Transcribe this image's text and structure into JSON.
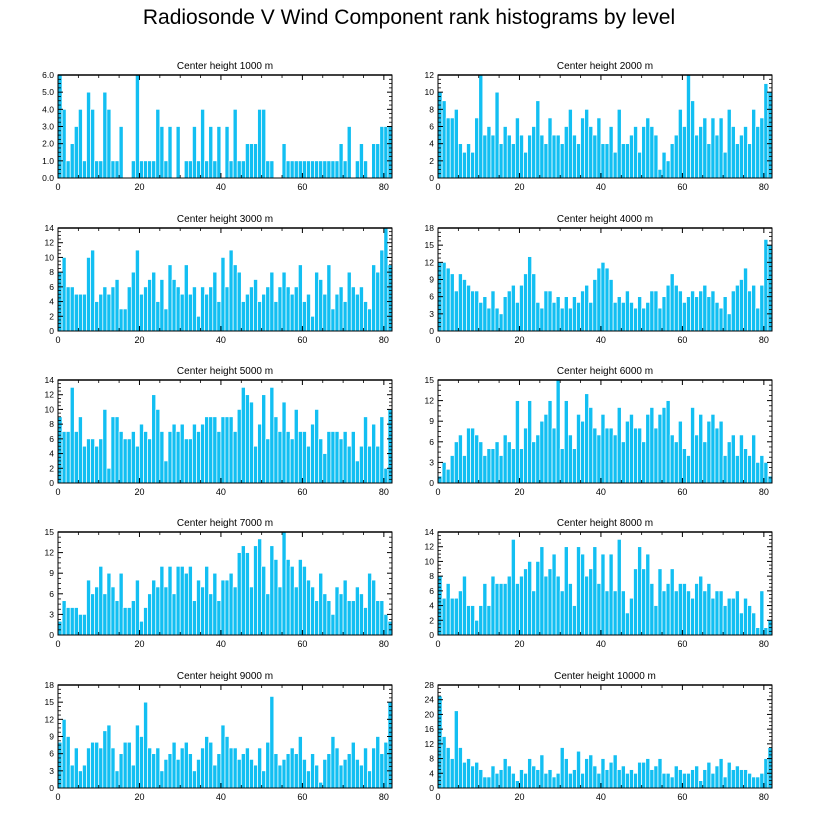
{
  "figure": {
    "title": "Radiosonde V Wind Component rank histograms by level",
    "bar_color": "#12bff2",
    "bar_edge_color": "#ffffff",
    "axis_color": "#000000"
  },
  "chart_data": [
    {
      "type": "bar",
      "title": "Center height 1000 m",
      "ylim": [
        0,
        6
      ],
      "yticks": [
        0,
        1,
        2,
        3,
        4,
        5,
        6
      ],
      "ytick_labels": [
        "0.0",
        "1.0",
        "2.0",
        "3.0",
        "4.0",
        "5.0",
        "6.0"
      ],
      "xlim": [
        0,
        82
      ],
      "xticks": [
        0,
        20,
        40,
        60,
        80
      ],
      "xtick_labels": [
        "0",
        "20",
        "40",
        "60",
        "80"
      ],
      "values": [
        6,
        4,
        1,
        2,
        3,
        4,
        1,
        5,
        4,
        1,
        1,
        5,
        4,
        1,
        1,
        3,
        0,
        0,
        1,
        6,
        1,
        1,
        1,
        1,
        4,
        3,
        1,
        3,
        0,
        3,
        0,
        1,
        1,
        3,
        1,
        4,
        1,
        3,
        1,
        3,
        0,
        3,
        1,
        4,
        1,
        1,
        2,
        2,
        2,
        4,
        4,
        1,
        1,
        0,
        0,
        2,
        1,
        1,
        1,
        1,
        1,
        1,
        1,
        1,
        1,
        1,
        1,
        1,
        1,
        2,
        1,
        3,
        0,
        1,
        2,
        1,
        0,
        2,
        2,
        3,
        3,
        3
      ]
    },
    {
      "type": "bar",
      "title": "Center height 2000 m",
      "ylim": [
        0,
        12
      ],
      "yticks": [
        0,
        2,
        4,
        6,
        8,
        10,
        12
      ],
      "ytick_labels": [
        "0",
        "2",
        "4",
        "6",
        "8",
        "10",
        "12"
      ],
      "xlim": [
        0,
        82
      ],
      "xticks": [
        0,
        20,
        40,
        60,
        80
      ],
      "xtick_labels": [
        "0",
        "20",
        "40",
        "60",
        "80"
      ],
      "values": [
        10,
        9,
        7,
        7,
        8,
        4,
        3,
        4,
        3,
        7,
        12,
        5,
        6,
        5,
        10,
        4,
        6,
        5,
        4,
        7,
        5,
        3,
        5,
        6,
        9,
        5,
        4,
        7,
        5,
        5,
        4,
        6,
        8,
        5,
        4,
        7,
        8,
        6,
        5,
        7,
        4,
        4,
        6,
        3,
        8,
        4,
        4,
        5,
        6,
        3,
        6,
        7,
        6,
        5,
        1,
        3,
        2,
        4,
        5,
        8,
        6,
        12,
        9,
        5,
        6,
        7,
        4,
        7,
        5,
        7,
        3,
        8,
        6,
        4,
        5,
        6,
        4,
        8,
        6,
        7,
        11,
        10
      ]
    },
    {
      "type": "bar",
      "title": "Center height 3000 m",
      "ylim": [
        0,
        14
      ],
      "yticks": [
        0,
        2,
        4,
        6,
        8,
        10,
        12,
        14
      ],
      "ytick_labels": [
        "0",
        "2",
        "4",
        "6",
        "8",
        "10",
        "12",
        "14"
      ],
      "xlim": [
        0,
        82
      ],
      "xticks": [
        0,
        20,
        40,
        60,
        80
      ],
      "xtick_labels": [
        "0",
        "20",
        "40",
        "60",
        "80"
      ],
      "values": [
        8,
        10,
        6,
        6,
        5,
        5,
        5,
        10,
        11,
        4,
        5,
        6,
        5,
        6,
        7,
        3,
        3,
        6,
        8,
        11,
        5,
        6,
        7,
        8,
        4,
        7,
        3,
        9,
        7,
        6,
        5,
        9,
        5,
        6,
        2,
        6,
        5,
        6,
        8,
        4,
        10,
        6,
        11,
        9,
        8,
        4,
        5,
        6,
        7,
        4,
        5,
        6,
        8,
        4,
        6,
        8,
        6,
        5,
        6,
        9,
        4,
        5,
        2,
        8,
        7,
        5,
        9,
        3,
        5,
        6,
        4,
        8,
        6,
        5,
        6,
        4,
        3,
        9,
        8,
        11,
        14,
        9
      ]
    },
    {
      "type": "bar",
      "title": "Center height 4000 m",
      "ylim": [
        0,
        18
      ],
      "yticks": [
        0,
        3,
        6,
        9,
        12,
        15,
        18
      ],
      "ytick_labels": [
        "0",
        "3",
        "6",
        "9",
        "12",
        "15",
        "18"
      ],
      "xlim": [
        0,
        82
      ],
      "xticks": [
        0,
        20,
        40,
        60,
        80
      ],
      "xtick_labels": [
        "0",
        "20",
        "40",
        "60",
        "80"
      ],
      "values": [
        12,
        12,
        11,
        10,
        7,
        10,
        9,
        8,
        7,
        7,
        5,
        6,
        4,
        7,
        4,
        3,
        6,
        7,
        8,
        5,
        8,
        10,
        13,
        10,
        5,
        4,
        7,
        7,
        5,
        6,
        4,
        6,
        4,
        6,
        5,
        7,
        8,
        5,
        9,
        11,
        12,
        11,
        9,
        5,
        6,
        5,
        7,
        5,
        4,
        6,
        4,
        5,
        7,
        7,
        4,
        6,
        8,
        10,
        8,
        7,
        5,
        6,
        7,
        6,
        7,
        8,
        6,
        7,
        5,
        4,
        6,
        3,
        7,
        8,
        9,
        11,
        7,
        8,
        4,
        8,
        16,
        15
      ]
    },
    {
      "type": "bar",
      "title": "Center height 5000 m",
      "ylim": [
        0,
        14
      ],
      "yticks": [
        0,
        2,
        4,
        6,
        8,
        10,
        12,
        14
      ],
      "ytick_labels": [
        "0",
        "2",
        "4",
        "6",
        "8",
        "10",
        "12",
        "14"
      ],
      "xlim": [
        0,
        82
      ],
      "xticks": [
        0,
        20,
        40,
        60,
        80
      ],
      "xtick_labels": [
        "0",
        "20",
        "40",
        "60",
        "80"
      ],
      "values": [
        9,
        7,
        7,
        13,
        7,
        9,
        5,
        6,
        6,
        5,
        6,
        10,
        2,
        9,
        9,
        7,
        6,
        6,
        7,
        5,
        8,
        7,
        6,
        12,
        10,
        7,
        3,
        7,
        8,
        7,
        8,
        6,
        6,
        8,
        7,
        8,
        9,
        9,
        9,
        7,
        9,
        9,
        9,
        7,
        10,
        13,
        12,
        11,
        5,
        8,
        12,
        6,
        13,
        9,
        7,
        11,
        7,
        6,
        10,
        7,
        7,
        5,
        8,
        10,
        6,
        4,
        7,
        7,
        7,
        6,
        7,
        5,
        7,
        3,
        5,
        9,
        5,
        8,
        5,
        9,
        2,
        10
      ]
    },
    {
      "type": "bar",
      "title": "Center height 6000 m",
      "ylim": [
        0,
        15
      ],
      "yticks": [
        0,
        3,
        6,
        9,
        12,
        15
      ],
      "ytick_labels": [
        "0",
        "3",
        "6",
        "9",
        "12",
        "15"
      ],
      "xlim": [
        0,
        82
      ],
      "xticks": [
        0,
        20,
        40,
        60,
        80
      ],
      "xtick_labels": [
        "0",
        "20",
        "40",
        "60",
        "80"
      ],
      "values": [
        1,
        3,
        2,
        4,
        6,
        7,
        4,
        8,
        8,
        7,
        6,
        4,
        5,
        5,
        6,
        4,
        7,
        6,
        5,
        12,
        5,
        8,
        12,
        6,
        7,
        9,
        10,
        12,
        8,
        15,
        5,
        12,
        7,
        5,
        10,
        9,
        13,
        11,
        8,
        7,
        10,
        8,
        8,
        7,
        11,
        6,
        9,
        10,
        8,
        8,
        6,
        10,
        11,
        8,
        10,
        11,
        12,
        7,
        6,
        9,
        5,
        4,
        11,
        7,
        10,
        6,
        9,
        10,
        8,
        9,
        4,
        6,
        7,
        4,
        7,
        5,
        4,
        7,
        3,
        4,
        3,
        1
      ]
    },
    {
      "type": "bar",
      "title": "Center height 7000 m",
      "ylim": [
        0,
        15
      ],
      "yticks": [
        0,
        3,
        6,
        9,
        12,
        15
      ],
      "ytick_labels": [
        "0",
        "3",
        "6",
        "9",
        "12",
        "15"
      ],
      "xlim": [
        0,
        82
      ],
      "xticks": [
        0,
        20,
        40,
        60,
        80
      ],
      "xtick_labels": [
        "0",
        "20",
        "40",
        "60",
        "80"
      ],
      "values": [
        2,
        5,
        4,
        4,
        4,
        3,
        3,
        8,
        6,
        7,
        10,
        6,
        9,
        7,
        5,
        9,
        4,
        4,
        5,
        8,
        2,
        4,
        6,
        8,
        7,
        10,
        7,
        10,
        6,
        10,
        10,
        9,
        10,
        5,
        8,
        7,
        10,
        6,
        9,
        5,
        8,
        8,
        9,
        7,
        12,
        13,
        12,
        7,
        13,
        14,
        10,
        6,
        13,
        11,
        7,
        15,
        11,
        10,
        7,
        11,
        10,
        8,
        7,
        5,
        9,
        6,
        5,
        3,
        7,
        6,
        8,
        5,
        5,
        7,
        6,
        4,
        9,
        8,
        5,
        5,
        3,
        2
      ]
    },
    {
      "type": "bar",
      "title": "Center height 8000 m",
      "ylim": [
        0,
        14
      ],
      "yticks": [
        0,
        2,
        4,
        6,
        8,
        10,
        12,
        14
      ],
      "ytick_labels": [
        "0",
        "2",
        "4",
        "6",
        "8",
        "10",
        "12",
        "14"
      ],
      "xlim": [
        0,
        82
      ],
      "xticks": [
        0,
        20,
        40,
        60,
        80
      ],
      "xtick_labels": [
        "0",
        "20",
        "40",
        "60",
        "80"
      ],
      "values": [
        8,
        5,
        7,
        5,
        5,
        6,
        8,
        4,
        4,
        2,
        4,
        7,
        4,
        8,
        7,
        7,
        7,
        8,
        13,
        7,
        8,
        9,
        10,
        6,
        10,
        12,
        8,
        9,
        11,
        8,
        6,
        12,
        7,
        4,
        12,
        11,
        8,
        9,
        12,
        7,
        11,
        6,
        11,
        6,
        13,
        6,
        3,
        5,
        9,
        12,
        9,
        11,
        7,
        4,
        9,
        6,
        7,
        9,
        6,
        7,
        7,
        6,
        5,
        7,
        8,
        6,
        7,
        5,
        6,
        6,
        4,
        5,
        5,
        6,
        3,
        5,
        4,
        3,
        1,
        6,
        1,
        2
      ]
    },
    {
      "type": "bar",
      "title": "Center height 9000 m",
      "ylim": [
        0,
        18
      ],
      "yticks": [
        0,
        3,
        6,
        9,
        12,
        15,
        18
      ],
      "ytick_labels": [
        "0",
        "3",
        "6",
        "9",
        "12",
        "15",
        "18"
      ],
      "xlim": [
        0,
        82
      ],
      "xticks": [
        0,
        20,
        40,
        60,
        80
      ],
      "xtick_labels": [
        "0",
        "20",
        "40",
        "60",
        "80"
      ],
      "values": [
        8,
        12,
        9,
        4,
        7,
        3,
        4,
        7,
        8,
        8,
        7,
        10,
        11,
        7,
        3,
        6,
        8,
        8,
        4,
        11,
        9,
        15,
        7,
        6,
        7,
        3,
        5,
        6,
        8,
        5,
        7,
        8,
        6,
        3,
        5,
        7,
        9,
        8,
        4,
        6,
        11,
        9,
        7,
        7,
        5,
        6,
        7,
        5,
        4,
        7,
        3,
        8,
        16,
        6,
        4,
        5,
        6,
        7,
        6,
        9,
        5,
        3,
        6,
        4,
        1,
        5,
        6,
        9,
        7,
        4,
        5,
        6,
        8,
        5,
        4,
        7,
        3,
        7,
        9,
        6,
        8,
        15
      ]
    },
    {
      "type": "bar",
      "title": "Center height 10000 m",
      "ylim": [
        0,
        28
      ],
      "yticks": [
        0,
        4,
        8,
        12,
        16,
        20,
        24,
        28
      ],
      "ytick_labels": [
        "0",
        "4",
        "8",
        "12",
        "16",
        "20",
        "24",
        "28"
      ],
      "xlim": [
        0,
        82
      ],
      "xticks": [
        0,
        20,
        40,
        60,
        80
      ],
      "xtick_labels": [
        "0",
        "20",
        "40",
        "60",
        "80"
      ],
      "values": [
        25,
        14,
        11,
        8,
        21,
        11,
        7,
        8,
        6,
        7,
        5,
        3,
        3,
        6,
        4,
        5,
        8,
        6,
        4,
        2,
        5,
        4,
        8,
        6,
        5,
        9,
        4,
        5,
        3,
        4,
        11,
        8,
        4,
        5,
        10,
        4,
        8,
        9,
        6,
        4,
        8,
        5,
        7,
        9,
        5,
        6,
        4,
        5,
        4,
        7,
        7,
        8,
        5,
        6,
        8,
        4,
        4,
        3,
        6,
        5,
        4,
        4,
        5,
        6,
        2,
        5,
        7,
        4,
        6,
        8,
        3,
        7,
        5,
        6,
        5,
        5,
        4,
        3,
        3,
        4,
        8,
        11
      ]
    }
  ]
}
